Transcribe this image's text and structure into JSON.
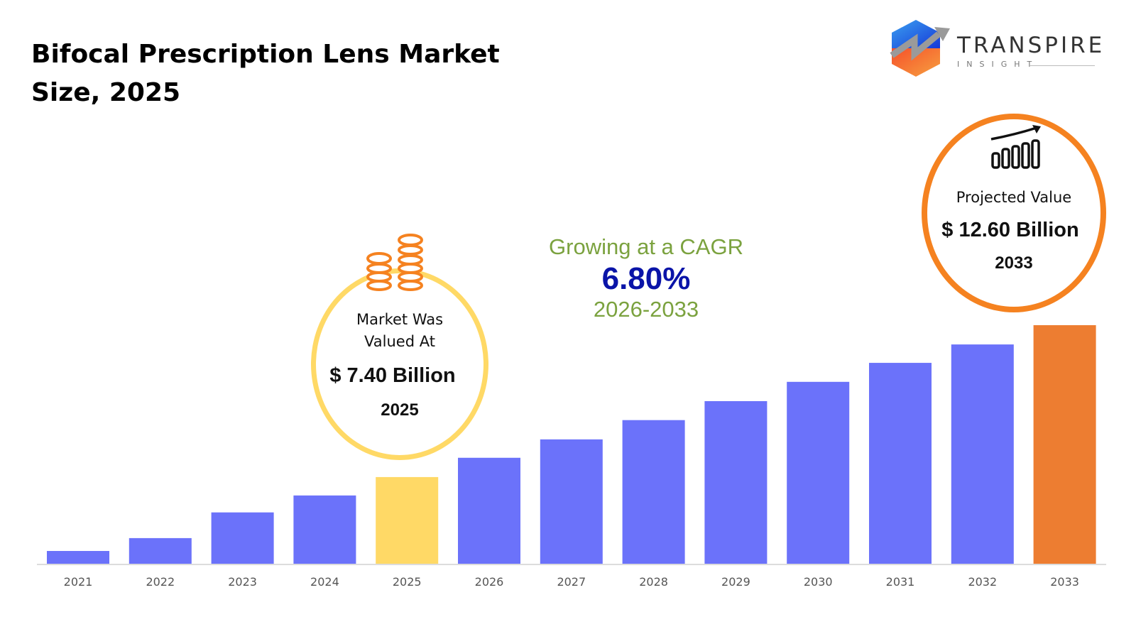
{
  "title": "Bifocal Prescription Lens Market Size, 2025",
  "logo": {
    "word": "TRANSPIRE",
    "sub": "INSIGHT"
  },
  "callout_2025": {
    "label": "Market Was Valued At",
    "value": "$ 7.40 Billion",
    "year": "2025",
    "color": "#FFD966",
    "icon": "coin-stacks-icon"
  },
  "callout_2033": {
    "label": "Projected Value",
    "value": "$ 12.60 Billion",
    "year": "2033",
    "color": "#F58220",
    "icon": "bar-growth-icon"
  },
  "cagr": {
    "label": "Growing at a CAGR",
    "value": "6.80%",
    "period": "2026-2033"
  },
  "chart_data": {
    "type": "bar",
    "title": "",
    "xlabel": "",
    "ylabel": "",
    "grid": false,
    "unit": "USD Billion (estimated)",
    "categories": [
      "2021",
      "2022",
      "2023",
      "2024",
      "2025",
      "2026",
      "2027",
      "2028",
      "2029",
      "2030",
      "2031",
      "2032",
      "2033"
    ],
    "values": [
      4.87,
      5.31,
      6.19,
      6.77,
      7.4,
      8.06,
      8.69,
      9.35,
      10.0,
      10.66,
      11.31,
      11.94,
      12.6
    ],
    "ylim": [
      4.43,
      12.6
    ],
    "colors": {
      "default": "#6B72FA",
      "base_year": "#FFD966",
      "forecast_end": "#ED7D31"
    }
  }
}
